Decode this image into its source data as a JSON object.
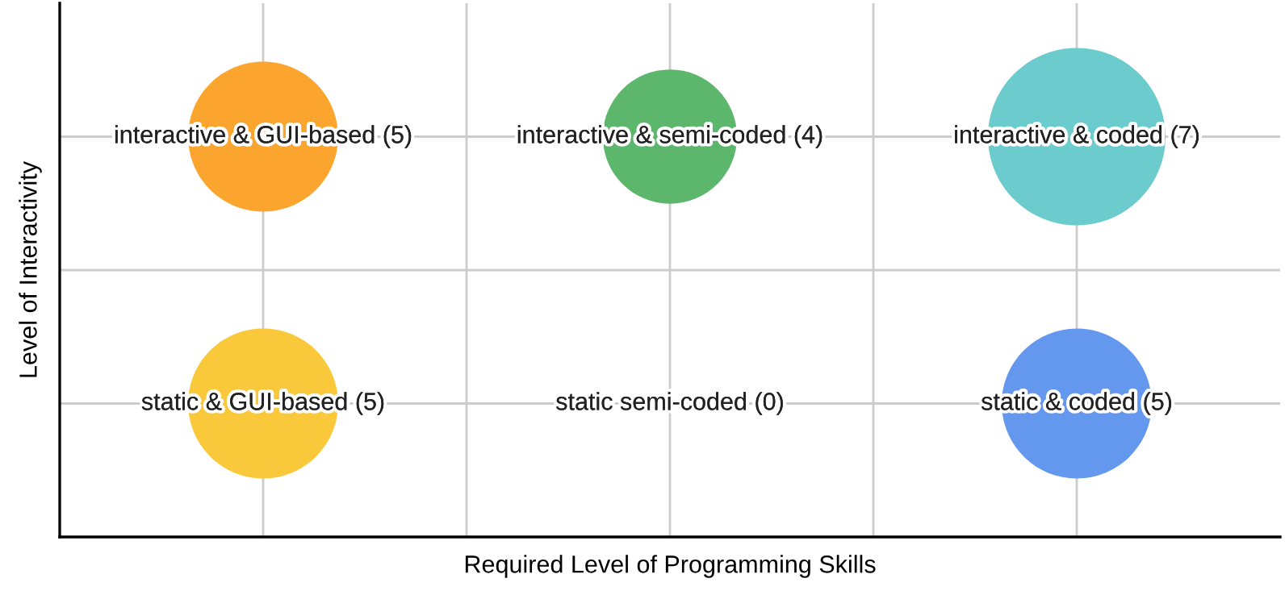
{
  "chart_data": {
    "type": "other",
    "xlabel": "Required Level of Programming Skills",
    "ylabel": "Level of Interactivity",
    "values": [
      5,
      4,
      7,
      5,
      0,
      5
    ],
    "colors": [
      "#fba42e",
      "#5cb66b",
      "#6ccbcd",
      "#f9c93b",
      "#ffffff",
      "#6497ee"
    ],
    "value_labels": [
      "interactive & GUI-based (5)",
      "interactive & semi-coded (4)",
      "interactive & coded (7)",
      "static & GUI-based (5)",
      "static semi-coded (0)",
      "static & coded (5)"
    ]
  }
}
